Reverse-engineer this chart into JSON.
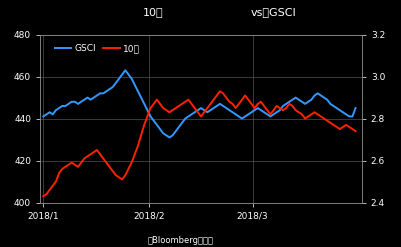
{
  "title_left": "10年",
  "title_right": "vs　GSCI",
  "background_color": "#000000",
  "text_color": "#ffffff",
  "gsci_color": "#3399ff",
  "rate_color": "#ff2200",
  "ylim_left": [
    400,
    480
  ],
  "ylim_right": [
    2.4,
    3.2
  ],
  "yticks_left": [
    400,
    420,
    440,
    460,
    480
  ],
  "yticks_right": [
    2.4,
    2.6,
    2.8,
    3.0,
    3.2
  ],
  "xtick_labels": [
    "2018/1",
    "2018/2",
    "2018/3"
  ],
  "xtick_positions": [
    0.0,
    0.34,
    0.67
  ],
  "xlabel": "（Bloombergより）",
  "legend_gsci": "GSCI",
  "legend_rate": "10年",
  "gsci_data": [
    441,
    442,
    443,
    442,
    444,
    445,
    446,
    446,
    447,
    448,
    448,
    447,
    448,
    449,
    450,
    449,
    450,
    451,
    452,
    452,
    453,
    454,
    455,
    457,
    459,
    461,
    463,
    461,
    459,
    456,
    453,
    450,
    447,
    444,
    441,
    439,
    437,
    435,
    433,
    432,
    431,
    432,
    434,
    436,
    438,
    440,
    441,
    442,
    443,
    444,
    445,
    444,
    443,
    444,
    445,
    446,
    447,
    446,
    445,
    444,
    443,
    442,
    441,
    440,
    441,
    442,
    443,
    444,
    445,
    444,
    443,
    442,
    441,
    442,
    443,
    444,
    446,
    447,
    448,
    449,
    450,
    449,
    448,
    447,
    448,
    449,
    451,
    452,
    451,
    450,
    449,
    447,
    446,
    445,
    444,
    443,
    442,
    441,
    441,
    445
  ],
  "rate_data": [
    2.43,
    2.44,
    2.46,
    2.48,
    2.5,
    2.54,
    2.56,
    2.57,
    2.58,
    2.59,
    2.58,
    2.57,
    2.59,
    2.61,
    2.62,
    2.63,
    2.64,
    2.65,
    2.63,
    2.61,
    2.59,
    2.57,
    2.55,
    2.53,
    2.52,
    2.51,
    2.53,
    2.56,
    2.59,
    2.63,
    2.67,
    2.72,
    2.77,
    2.81,
    2.85,
    2.87,
    2.89,
    2.87,
    2.85,
    2.84,
    2.83,
    2.84,
    2.85,
    2.86,
    2.87,
    2.88,
    2.89,
    2.87,
    2.85,
    2.83,
    2.81,
    2.83,
    2.85,
    2.87,
    2.89,
    2.91,
    2.93,
    2.92,
    2.9,
    2.88,
    2.87,
    2.85,
    2.87,
    2.89,
    2.91,
    2.89,
    2.87,
    2.85,
    2.87,
    2.88,
    2.86,
    2.84,
    2.82,
    2.84,
    2.86,
    2.85,
    2.84,
    2.85,
    2.87,
    2.86,
    2.84,
    2.83,
    2.82,
    2.8,
    2.81,
    2.82,
    2.83,
    2.82,
    2.81,
    2.8,
    2.79,
    2.78,
    2.77,
    2.76,
    2.75,
    2.76,
    2.77,
    2.76,
    2.75,
    2.74
  ]
}
